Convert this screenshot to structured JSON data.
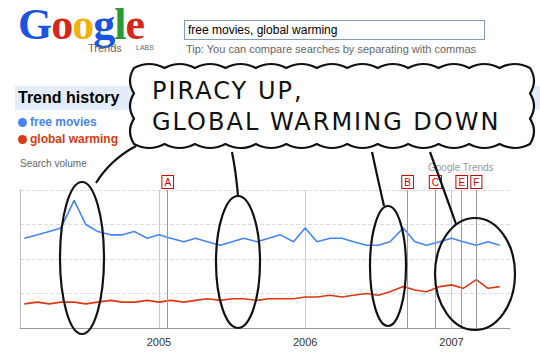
{
  "page": {
    "logo": "Google",
    "logo_sub": "Trends",
    "logo_badge": "LABS",
    "search_box": "free movies, global warming",
    "tip": "Tip: You can compare searches by separating with commas",
    "caption": [
      "PIRACY UP,",
      "GLOBAL WARMING DOWN"
    ]
  },
  "chart_data": {
    "type": "line",
    "title": "Trend history",
    "y_label": "Search volume",
    "watermark": "Google Trends",
    "x": [
      2004.08,
      2004.17,
      2004.25,
      2004.33,
      2004.42,
      2004.5,
      2004.58,
      2004.67,
      2004.75,
      2004.83,
      2004.92,
      2005.0,
      2005.08,
      2005.17,
      2005.25,
      2005.33,
      2005.42,
      2005.5,
      2005.58,
      2005.67,
      2005.75,
      2005.83,
      2005.92,
      2006.0,
      2006.08,
      2006.17,
      2006.25,
      2006.33,
      2006.42,
      2006.5,
      2006.58,
      2006.67,
      2006.75,
      2006.83,
      2006.92,
      2007.0,
      2007.08,
      2007.17,
      2007.25,
      2007.33
    ],
    "series": [
      {
        "name": "free movies",
        "color": "#4684ee",
        "values": [
          2.6,
          2.7,
          2.8,
          2.9,
          3.7,
          3.0,
          2.8,
          2.7,
          2.7,
          2.8,
          2.6,
          2.7,
          2.6,
          2.5,
          2.6,
          2.5,
          2.4,
          2.5,
          2.6,
          2.5,
          2.6,
          2.7,
          2.5,
          2.9,
          2.5,
          2.6,
          2.6,
          2.5,
          2.4,
          2.4,
          2.5,
          2.9,
          2.5,
          2.4,
          2.5,
          2.6,
          2.5,
          2.4,
          2.5,
          2.4
        ]
      },
      {
        "name": "global warming",
        "color": "#dc3912",
        "values": [
          0.7,
          0.75,
          0.7,
          0.75,
          0.75,
          0.7,
          0.75,
          0.8,
          0.75,
          0.75,
          0.8,
          0.75,
          0.8,
          0.75,
          0.8,
          0.85,
          0.8,
          0.85,
          0.85,
          0.8,
          0.85,
          0.85,
          0.85,
          0.9,
          0.9,
          0.95,
          0.9,
          0.95,
          1.0,
          0.95,
          1.05,
          1.2,
          1.1,
          1.05,
          1.2,
          1.25,
          1.15,
          1.4,
          1.15,
          1.2
        ]
      }
    ],
    "xlim": [
      2004.05,
      2007.4
    ],
    "xticks": [
      2005,
      2006,
      2007
    ],
    "ylim": [
      0,
      4
    ],
    "yticks": [
      0,
      1,
      2,
      3,
      4
    ],
    "grid": true,
    "tick_labels": "x",
    "annotations": [
      {
        "label": "A",
        "x": 2005.06
      },
      {
        "label": "B",
        "x": 2006.7
      },
      {
        "label": "C",
        "x": 2006.89
      },
      {
        "label": "E",
        "x": 2007.07
      },
      {
        "label": "F",
        "x": 2007.17
      }
    ]
  }
}
